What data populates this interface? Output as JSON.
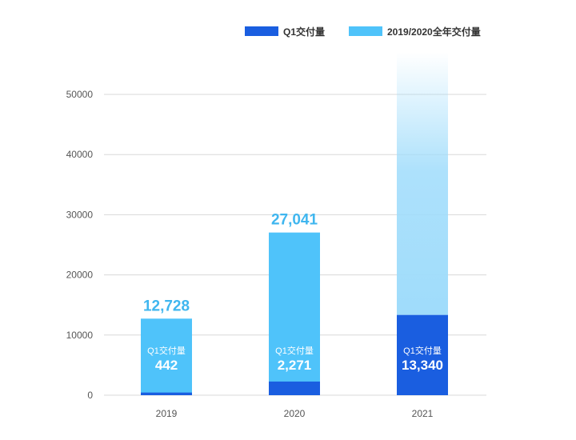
{
  "chart_data": {
    "type": "bar",
    "categories": [
      "2019",
      "2020",
      "2021"
    ],
    "series": [
      {
        "name": "Q1交付量",
        "values": [
          442,
          2271,
          13340
        ]
      },
      {
        "name": "2019/2020全年交付量",
        "values": [
          12728,
          27041,
          null
        ]
      }
    ],
    "total_labels": [
      "12,728",
      "27,041",
      ""
    ],
    "q1_labels": [
      "442",
      "2,271",
      "13,340"
    ],
    "q1_caption": "Q1交付量",
    "yticks": [
      "0",
      "10000",
      "20000",
      "30000",
      "40000",
      "50000"
    ],
    "ylim": [
      0,
      50000
    ],
    "grid": true,
    "legend_position": "top-right",
    "colors": {
      "q1": "#1a5ee0",
      "annual": "#4fc3fa",
      "projection": "#9fdcfb",
      "grid": "#d8d8d8",
      "total_text": "#3fb6ef"
    }
  }
}
